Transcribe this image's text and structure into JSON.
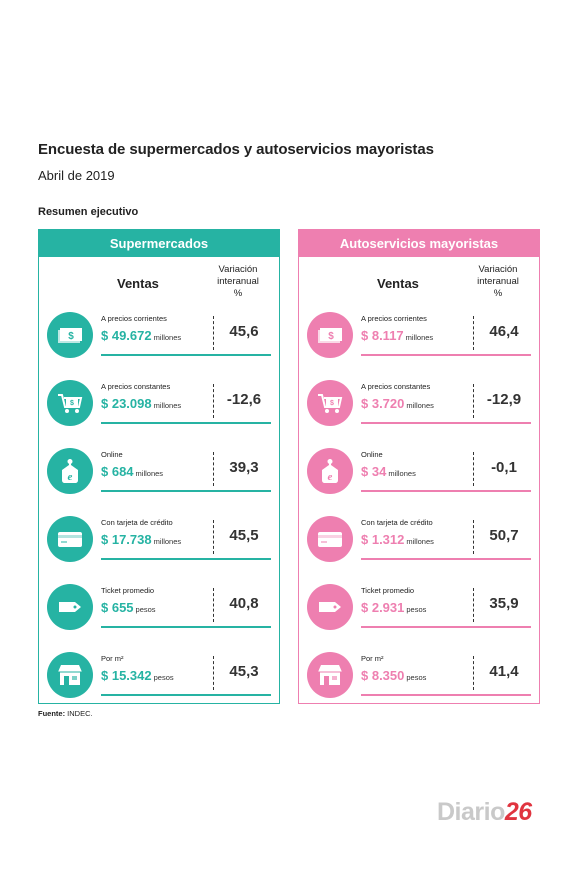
{
  "title": "Encuesta de supermercados y autoservicios mayoristas",
  "subtitle": "Abril de 2019",
  "section_label": "Resumen ejecutivo",
  "columns": {
    "ventas": "Ventas",
    "variation_line1": "Variación",
    "variation_line2": "interanual",
    "variation_line3": "%"
  },
  "colors": {
    "supermercados": "#26b3a3",
    "autoservicios": "#ee7fb0"
  },
  "supermercados": {
    "header": "Supermercados",
    "rows": [
      {
        "icon": "money-bills-icon",
        "label": "A precios corrientes",
        "value": "$ 49.672",
        "unit": "millones",
        "variation": "45,6"
      },
      {
        "icon": "shopping-cart-icon",
        "label": "A precios constantes",
        "value": "$ 23.098",
        "unit": "millones",
        "variation": "-12,6"
      },
      {
        "icon": "online-tag-icon",
        "label": "Online",
        "value": "$ 684",
        "unit": "millones",
        "variation": "39,3"
      },
      {
        "icon": "credit-card-icon",
        "label": "Con tarjeta de crédito",
        "value": "$ 17.738",
        "unit": "millones",
        "variation": "45,5"
      },
      {
        "icon": "ticket-icon",
        "label": "Ticket promedio",
        "value": "$ 655",
        "unit": "pesos",
        "variation": "40,8"
      },
      {
        "icon": "store-icon",
        "label": "Por m²",
        "value": "$ 15.342",
        "unit": "pesos",
        "variation": "45,3"
      }
    ]
  },
  "autoservicios": {
    "header": "Autoservicios mayoristas",
    "rows": [
      {
        "icon": "money-bills-icon",
        "label": "A precios corrientes",
        "value": "$ 8.117",
        "unit": "millones",
        "variation": "46,4"
      },
      {
        "icon": "shopping-cart-icon",
        "label": "A precios constantes",
        "value": "$ 3.720",
        "unit": "millones",
        "variation": "-12,9"
      },
      {
        "icon": "online-tag-icon",
        "label": "Online",
        "value": "$ 34",
        "unit": "millones",
        "variation": "-0,1"
      },
      {
        "icon": "credit-card-icon",
        "label": "Con tarjeta de crédito",
        "value": "$ 1.312",
        "unit": "millones",
        "variation": "50,7"
      },
      {
        "icon": "ticket-icon",
        "label": "Ticket promedio",
        "value": "$ 2.931",
        "unit": "pesos",
        "variation": "35,9"
      },
      {
        "icon": "store-icon",
        "label": "Por m²",
        "value": "$ 8.350",
        "unit": "pesos",
        "variation": "41,4"
      }
    ]
  },
  "source": {
    "label": "Fuente:",
    "text": " INDEC."
  },
  "brand": {
    "text": "Diario",
    "number": "26"
  }
}
